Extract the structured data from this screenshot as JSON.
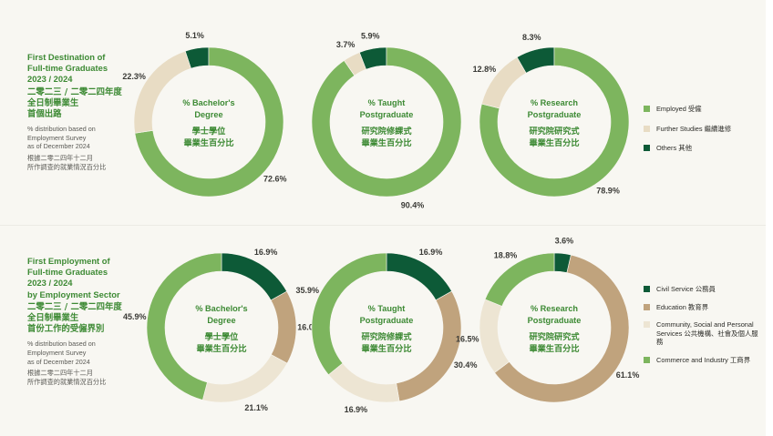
{
  "colors": {
    "employed": "#7db55e",
    "further_studies": "#e8dcc4",
    "others": "#0d5a37",
    "civil_service": "#0d5a37",
    "education": "#c0a37d",
    "community": "#ede5d3",
    "commerce": "#7db55e",
    "title_green": "#3d8a34"
  },
  "section1": {
    "title_en": [
      "First Destination of",
      "Full-time Graduates",
      "2023 / 2024"
    ],
    "title_zh": [
      "二零二三 / 二零二四年度",
      "全日制畢業生",
      "首個出路"
    ],
    "note_en": [
      "% distribution based on",
      "Employment Survey",
      "as of December 2024"
    ],
    "note_zh": [
      "根據二零二四年十二月",
      "所作調查的就業情況百分比"
    ]
  },
  "section2": {
    "title_en": [
      "First Employment of",
      "Full-time Graduates",
      "2023 / 2024",
      "by Employment Sector"
    ],
    "title_zh": [
      "二零二三 / 二零二四年度",
      "全日制畢業生",
      "首份工作的受僱界別"
    ],
    "note_en": [
      "% distribution based on",
      "Employment Survey",
      "as of December 2024"
    ],
    "note_zh": [
      "根據二零二四年十二月",
      "所作調查的就業情況百分比"
    ]
  },
  "legend1": [
    {
      "key": "employed",
      "label": "Employed 受僱"
    },
    {
      "key": "further_studies",
      "label": "Further Studies 繼續進修"
    },
    {
      "key": "others",
      "label": "Others 其他"
    }
  ],
  "legend2": [
    {
      "key": "civil_service",
      "label": "Civil Service 公務員"
    },
    {
      "key": "education",
      "label": "Education 教育界"
    },
    {
      "key": "community",
      "label": "Community, Social and Personal Services 公共機構、社會及個人服務"
    },
    {
      "key": "commerce",
      "label": "Commerce and Industry 工商界"
    }
  ],
  "chart_data": [
    {
      "type": "pie",
      "title": "% Bachelor's Degree 學士學位 畢業生百分比",
      "center_lines": [
        "% Bachelor's",
        "Degree",
        "學士學位",
        "畢業生百分比"
      ],
      "categories": [
        "Employed 受僱",
        "Further Studies 繼續進修",
        "Others 其他"
      ],
      "values": [
        72.6,
        22.3,
        5.1
      ],
      "labels": [
        "72.6%",
        "22.3%",
        "5.1%"
      ]
    },
    {
      "type": "pie",
      "title": "% Taught Postgraduate 研究院修課式 畢業生百分比",
      "center_lines": [
        "% Taught",
        "Postgraduate",
        "研究院修課式",
        "畢業生百分比"
      ],
      "categories": [
        "Employed 受僱",
        "Further Studies 繼續進修",
        "Others 其他"
      ],
      "values": [
        90.4,
        3.7,
        5.9
      ],
      "labels": [
        "90.4%",
        "3.7%",
        "5.9%"
      ]
    },
    {
      "type": "pie",
      "title": "% Research Postgraduate 研究院研究式 畢業生百分比",
      "center_lines": [
        "% Research",
        "Postgraduate",
        "研究院研究式",
        "畢業生百分比"
      ],
      "categories": [
        "Employed 受僱",
        "Further Studies 繼續進修",
        "Others 其他"
      ],
      "values": [
        78.9,
        12.8,
        8.3
      ],
      "labels": [
        "78.9%",
        "12.8%",
        "8.3%"
      ]
    },
    {
      "type": "pie",
      "title": "% Bachelor's Degree 學士學位 畢業生百分比",
      "center_lines": [
        "% Bachelor's",
        "Degree",
        "學士學位",
        "畢業生百分比"
      ],
      "categories": [
        "Civil Service 公務員",
        "Education 教育界",
        "Community, Social and Personal Services 公共機構、社會及個人服務",
        "Commerce and Industry 工商界"
      ],
      "values": [
        16.9,
        16.0,
        21.1,
        45.9
      ],
      "labels": [
        "16.9%",
        "16.0%",
        "21.1%",
        "45.9%"
      ]
    },
    {
      "type": "pie",
      "title": "% Taught Postgraduate 研究院修課式 畢業生百分比",
      "center_lines": [
        "% Taught",
        "Postgraduate",
        "研究院修課式",
        "畢業生百分比"
      ],
      "categories": [
        "Civil Service 公務員",
        "Education 教育界",
        "Community, Social and Personal Services 公共機構、社會及個人服務",
        "Commerce and Industry 工商界"
      ],
      "values": [
        16.9,
        30.4,
        16.9,
        35.9
      ],
      "labels": [
        "16.9%",
        "30.4%",
        "16.9%",
        "35.9%"
      ]
    },
    {
      "type": "pie",
      "title": "% Research Postgraduate 研究院研究式 畢業生百分比",
      "center_lines": [
        "% Research",
        "Postgraduate",
        "研究院研究式",
        "畢業生百分比"
      ],
      "categories": [
        "Civil Service 公務員",
        "Education 教育界",
        "Community, Social and Personal Services 公共機構、社會及個人服務",
        "Commerce and Industry 工商界"
      ],
      "values": [
        3.6,
        61.1,
        16.5,
        18.8
      ],
      "labels": [
        "3.6%",
        "61.1%",
        "16.5%",
        "18.8%"
      ]
    }
  ]
}
